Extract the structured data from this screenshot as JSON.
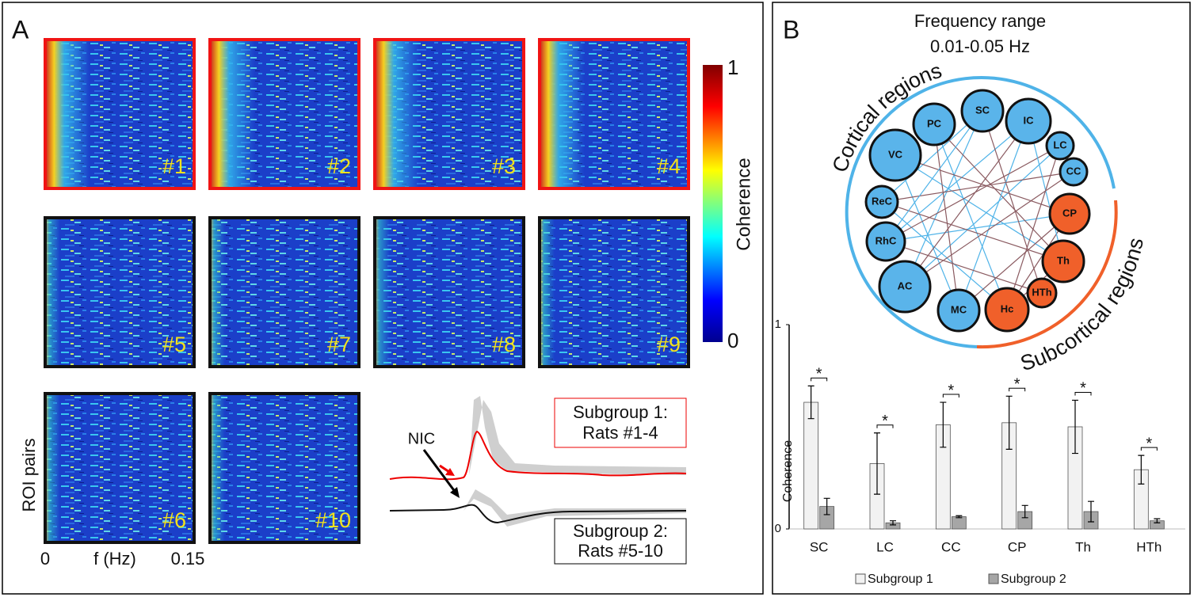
{
  "panel_a": {
    "label": "A",
    "heatmaps": [
      "#1",
      "#2",
      "#3",
      "#4",
      "#5",
      "#7",
      "#8",
      "#9",
      "#6",
      "#10"
    ],
    "colorbar": {
      "ticks": [
        0,
        1
      ],
      "label": "Coherence"
    },
    "y_label": "ROI pairs",
    "x_label": "f (Hz)",
    "x_ticks": [
      0,
      0.15
    ],
    "trace_label": "NIC",
    "subgroup_1": [
      "Subgroup 1:",
      "Rats #1-4"
    ],
    "subgroup_2": [
      "Subgroup 2:",
      "Rats #5-10"
    ]
  },
  "panel_b": {
    "label": "B",
    "title": [
      "Frequency range",
      "0.01-0.05 Hz"
    ],
    "cortical_label": "Cortical regions",
    "subcortical_label": "Subcortical regions",
    "nodes": [
      "PC",
      "SC",
      "IC",
      "LC",
      "CC",
      "VC",
      "ReC",
      "RhC",
      "AC",
      "MC",
      "Hc",
      "HTh",
      "Th",
      "CP"
    ]
  },
  "chart_data": {
    "type": "bar",
    "categories": [
      "SC",
      "LC",
      "CC",
      "CP",
      "Th",
      "HTh"
    ],
    "y_label": "Coherence",
    "series": [
      {
        "name": "Subgroup 1",
        "color": "#f2f2f2",
        "values": [
          0.62,
          0.32,
          0.51,
          0.52,
          0.5,
          0.29
        ],
        "errors": [
          0.08,
          0.15,
          0.11,
          0.13,
          0.13,
          0.07
        ]
      },
      {
        "name": "Subgroup 2",
        "color": "#a6a6a6",
        "values": [
          0.11,
          0.03,
          0.06,
          0.085,
          0.085,
          0.04
        ],
        "errors": [
          0.04,
          0.01,
          0.005,
          0.03,
          0.05,
          0.01
        ]
      }
    ],
    "significance": [
      "*",
      "*",
      "*",
      "*",
      "*",
      "*"
    ],
    "ylim": [
      0,
      1
    ],
    "yticks": [
      0,
      1
    ]
  }
}
